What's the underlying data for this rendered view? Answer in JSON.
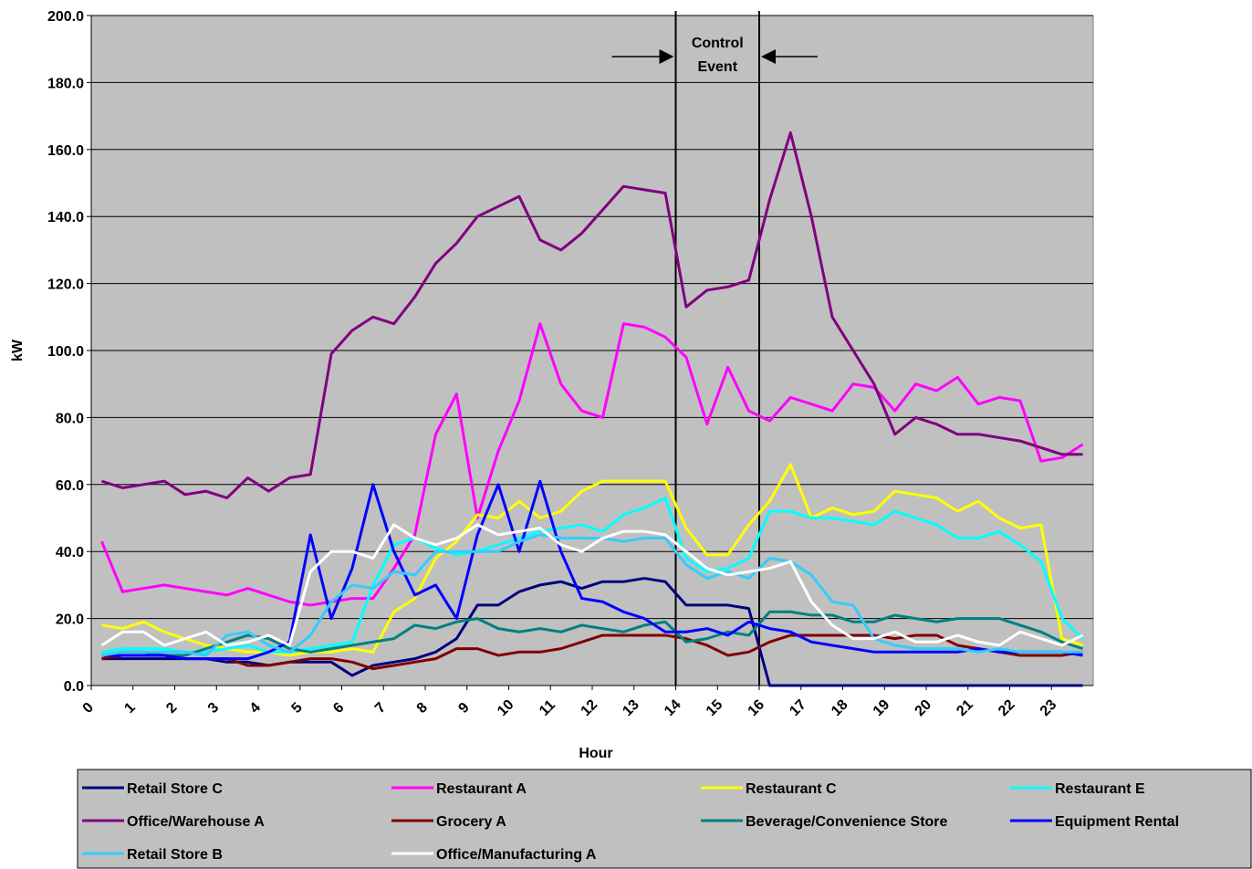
{
  "chart_data": {
    "type": "line",
    "y_label": "kW",
    "x_label": "Hour",
    "xlim": [
      0,
      24
    ],
    "xticks": [
      0,
      1,
      2,
      3,
      4,
      5,
      6,
      7,
      8,
      9,
      10,
      11,
      12,
      13,
      14,
      15,
      16,
      17,
      18,
      19,
      20,
      21,
      22,
      23
    ],
    "ylim": [
      0,
      200
    ],
    "yticks": [
      {
        "value": 0,
        "label": "0.0"
      },
      {
        "value": 20,
        "label": "20.0"
      },
      {
        "value": 40,
        "label": "40.0"
      },
      {
        "value": 60,
        "label": "60.0"
      },
      {
        "value": 80,
        "label": "80.0"
      },
      {
        "value": 100,
        "label": "100.0"
      },
      {
        "value": 120,
        "label": "120.0"
      },
      {
        "value": 140,
        "label": "140.0"
      },
      {
        "value": 160,
        "label": "160.0"
      },
      {
        "value": 180,
        "label": "180.0"
      },
      {
        "value": 200,
        "label": "200.0"
      }
    ],
    "grid": true,
    "legend": "bottom",
    "annotation": {
      "lines": [
        "Control",
        "Event"
      ],
      "x_start": 14,
      "x_end": 16
    },
    "x": [
      0.25,
      0.75,
      1.25,
      1.75,
      2.25,
      2.75,
      3.25,
      3.75,
      4.25,
      4.75,
      5.25,
      5.75,
      6.25,
      6.75,
      7.25,
      7.75,
      8.25,
      8.75,
      9.25,
      9.75,
      10.25,
      10.75,
      11.25,
      11.75,
      12.25,
      12.75,
      13.25,
      13.75,
      14.25,
      14.75,
      15.25,
      15.75,
      16.25,
      16.75,
      17.25,
      17.75,
      18.25,
      18.75,
      19.25,
      19.75,
      20.25,
      20.75,
      21.25,
      21.75,
      22.25,
      22.75,
      23.25,
      23.75
    ],
    "series": [
      {
        "name": "Retail Store C",
        "color": "#000080",
        "values": [
          8,
          8,
          8,
          8,
          8,
          8,
          7,
          7,
          6,
          7,
          7,
          7,
          3,
          6,
          7,
          8,
          10,
          14,
          24,
          24,
          28,
          30,
          31,
          29,
          31,
          31,
          32,
          31,
          24,
          24,
          24,
          23,
          0,
          0,
          0,
          0,
          0,
          0,
          0,
          0,
          0,
          0,
          0,
          0,
          0,
          0,
          0,
          0
        ]
      },
      {
        "name": "Restaurant A",
        "color": "#FF00FF",
        "values": [
          43,
          28,
          29,
          30,
          29,
          28,
          27,
          29,
          27,
          25,
          24,
          25,
          26,
          26,
          35,
          45,
          75,
          87,
          50,
          70,
          85,
          108,
          90,
          82,
          80,
          108,
          107,
          104,
          98,
          78,
          95,
          82,
          79,
          86,
          84,
          82,
          90,
          89,
          82,
          90,
          88,
          92,
          84,
          86,
          85,
          67,
          68,
          72
        ]
      },
      {
        "name": "Restaurant C",
        "color": "#FFFF00",
        "values": [
          18,
          17,
          19,
          16,
          14,
          12,
          11,
          10,
          10,
          9,
          10,
          10,
          11,
          10,
          22,
          26,
          38,
          43,
          51,
          50,
          55,
          50,
          52,
          58,
          61,
          61,
          61,
          61,
          47,
          39,
          39,
          48,
          55,
          66,
          50,
          53,
          51,
          52,
          58,
          57,
          56,
          52,
          55,
          50,
          47,
          48,
          14,
          12
        ]
      },
      {
        "name": "Restaurant E",
        "color": "#00FFFF",
        "values": [
          10,
          11,
          11,
          11,
          10,
          10,
          11,
          12,
          10,
          10,
          11,
          12,
          13,
          30,
          42,
          44,
          41,
          39,
          40,
          42,
          44,
          46,
          47,
          48,
          46,
          51,
          53,
          56,
          38,
          34,
          35,
          38,
          52,
          52,
          50,
          50,
          49,
          48,
          52,
          50,
          48,
          44,
          44,
          46,
          42,
          37,
          20,
          14
        ]
      },
      {
        "name": "Office/Warehouse A",
        "color": "#800080",
        "values": [
          61,
          59,
          60,
          61,
          57,
          58,
          56,
          62,
          58,
          62,
          63,
          99,
          106,
          110,
          108,
          116,
          126,
          132,
          140,
          143,
          146,
          133,
          130,
          135,
          142,
          149,
          148,
          147,
          113,
          118,
          119,
          121,
          145,
          165,
          140,
          110,
          100,
          90,
          75,
          80,
          78,
          75,
          75,
          74,
          73,
          71,
          69,
          69
        ]
      },
      {
        "name": "Grocery A",
        "color": "#800000",
        "values": [
          8,
          9,
          9,
          9,
          8,
          8,
          8,
          6,
          6,
          7,
          8,
          8,
          7,
          5,
          6,
          7,
          8,
          11,
          11,
          9,
          10,
          10,
          11,
          13,
          15,
          15,
          15,
          15,
          14,
          12,
          9,
          10,
          13,
          15,
          15,
          15,
          15,
          15,
          14,
          15,
          15,
          12,
          11,
          10,
          9,
          9,
          9,
          10
        ]
      },
      {
        "name": "Beverage/Convenience Store",
        "color": "#008080",
        "values": [
          9,
          10,
          10,
          9,
          9,
          11,
          13,
          15,
          14,
          11,
          10,
          11,
          12,
          13,
          14,
          18,
          17,
          19,
          20,
          17,
          16,
          17,
          16,
          18,
          17,
          16,
          18,
          19,
          13,
          14,
          16,
          15,
          22,
          22,
          21,
          21,
          19,
          19,
          21,
          20,
          19,
          20,
          20,
          20,
          18,
          16,
          13,
          11
        ]
      },
      {
        "name": "Equipment Rental",
        "color": "#0000FF",
        "values": [
          9,
          9,
          9,
          9,
          8,
          8,
          8,
          8,
          10,
          13,
          45,
          20,
          35,
          60,
          40,
          27,
          30,
          20,
          45,
          60,
          40,
          61,
          40,
          26,
          25,
          22,
          20,
          16,
          16,
          17,
          15,
          19,
          17,
          16,
          13,
          12,
          11,
          10,
          10,
          10,
          10,
          10,
          11,
          10,
          10,
          10,
          10,
          9
        ]
      },
      {
        "name": "Retail Store B",
        "color": "#33CCFF",
        "values": [
          9,
          10,
          10,
          10,
          10,
          9,
          15,
          16,
          12,
          10,
          15,
          25,
          30,
          29,
          34,
          33,
          40,
          40,
          40,
          40,
          43,
          45,
          44,
          44,
          44,
          43,
          44,
          44,
          36,
          32,
          34,
          32,
          38,
          37,
          33,
          25,
          24,
          14,
          12,
          11,
          11,
          11,
          10,
          11,
          10,
          10,
          10,
          10
        ]
      },
      {
        "name": "Office/Manufacturing A",
        "color": "#FFFFFF",
        "values": [
          12,
          16,
          16,
          12,
          14,
          16,
          12,
          13,
          15,
          12,
          34,
          40,
          40,
          38,
          48,
          44,
          42,
          44,
          48,
          45,
          46,
          47,
          42,
          40,
          44,
          46,
          46,
          45,
          40,
          35,
          33,
          34,
          35,
          37,
          25,
          18,
          14,
          14,
          16,
          13,
          13,
          15,
          13,
          12,
          16,
          14,
          12,
          15
        ]
      }
    ]
  }
}
